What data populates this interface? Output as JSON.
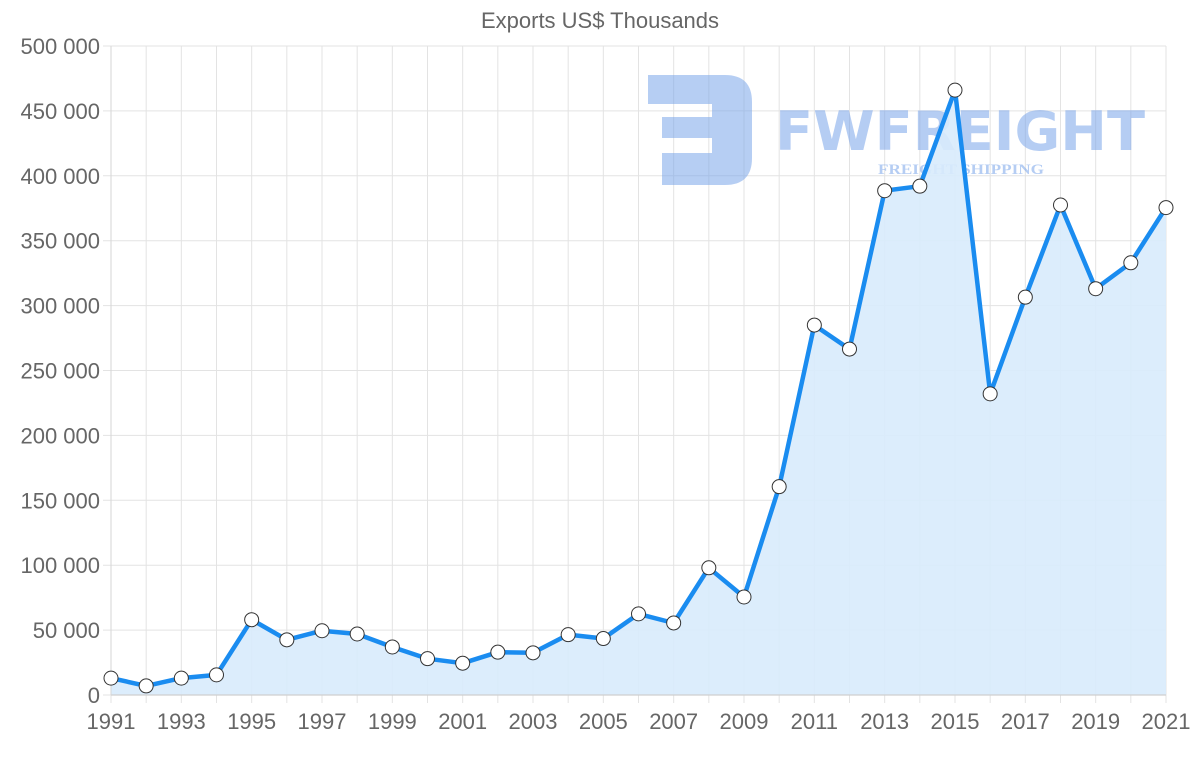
{
  "chart_data": {
    "type": "area",
    "title": "Exports US$ Thousands",
    "xlabel": "",
    "ylabel": "",
    "x": [
      1991,
      1992,
      1993,
      1994,
      1995,
      1996,
      1997,
      1998,
      1999,
      2000,
      2001,
      2002,
      2003,
      2004,
      2005,
      2006,
      2007,
      2008,
      2009,
      2010,
      2011,
      2012,
      2013,
      2014,
      2015,
      2016,
      2017,
      2018,
      2019,
      2020,
      2021
    ],
    "series": [
      {
        "name": "Exports US$ Thousands",
        "values": [
          13000,
          7000,
          13000,
          15500,
          58000,
          42500,
          49500,
          47000,
          37000,
          28000,
          24500,
          33000,
          32500,
          46500,
          43500,
          62500,
          55500,
          98000,
          75500,
          160500,
          285000,
          266500,
          388500,
          392000,
          466000,
          232000,
          306500,
          377500,
          313000,
          333000,
          375500
        ]
      }
    ],
    "ylim": [
      0,
      500000
    ],
    "yticks": [
      "0",
      "50 000",
      "100 000",
      "150 000",
      "200 000",
      "250 000",
      "300 000",
      "350 000",
      "400 000",
      "450 000",
      "500 000"
    ],
    "xticks": [
      "1991",
      "1993",
      "1995",
      "1997",
      "1999",
      "2001",
      "2003",
      "2005",
      "2007",
      "2009",
      "2011",
      "2013",
      "2015",
      "2017",
      "2019",
      "2021"
    ],
    "grid": true,
    "legend": "none",
    "colors": {
      "line": "#1a8cf0",
      "fill": "#d8ebfc",
      "grid": "#e3e3e3",
      "text": "#666666",
      "point_fill": "#ffffff",
      "point_stroke": "#333333"
    }
  },
  "watermark": {
    "brand": "FWFREIGHT",
    "tagline": "FREIGHT SHIPPING",
    "color": "#7aa5ea"
  }
}
